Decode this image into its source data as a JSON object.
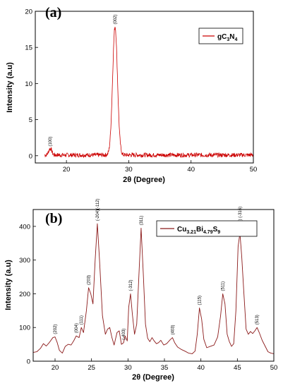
{
  "chart_data": [
    {
      "type": "line",
      "panel_label": "(a)",
      "xlabel": "2θ (Degree)",
      "ylabel": "Intensity (a.u)",
      "xlim": [
        15,
        50
      ],
      "ylim": [
        -1,
        20
      ],
      "xticks": [
        20,
        30,
        40,
        50
      ],
      "yticks": [
        0,
        5,
        10,
        15,
        20
      ],
      "grid": false,
      "legend_position": "top-right",
      "color": "#cc0000",
      "series": [
        {
          "name": "gC3N4",
          "name_parts": [
            "gC",
            "3",
            "N",
            "4"
          ],
          "peaks": [
            {
              "x": 17.4,
              "y": 0.9,
              "w": 0.35,
              "label": "(100)"
            },
            {
              "x": 27.8,
              "y": 17.8,
              "w": 0.55,
              "label": "(002)"
            }
          ],
          "baseline": 0.1,
          "noise": 0.3
        }
      ]
    },
    {
      "type": "line",
      "panel_label": "(b)",
      "xlabel": "2θ (Degree)",
      "ylabel": "Intensity (a.u)",
      "xlim": [
        17,
        50
      ],
      "ylim": [
        0,
        450
      ],
      "xticks": [
        20,
        25,
        30,
        35,
        40,
        45,
        50
      ],
      "yticks": [
        0,
        100,
        200,
        300,
        400
      ],
      "grid": false,
      "legend_position": "top-right",
      "color": "#8b1a1a",
      "series": [
        {
          "name": "Cu3.21Bi4.79S9",
          "name_parts": [
            "Cu",
            "3.21",
            "Bi",
            "4.79",
            "S",
            "9"
          ],
          "points": [
            [
              17.0,
              26
            ],
            [
              17.5,
              28
            ],
            [
              18.0,
              38
            ],
            [
              18.4,
              52
            ],
            [
              18.8,
              45
            ],
            [
              19.2,
              55
            ],
            [
              19.7,
              70
            ],
            [
              20.0,
              72
            ],
            [
              20.3,
              55
            ],
            [
              20.6,
              32
            ],
            [
              21.0,
              24
            ],
            [
              21.4,
              44
            ],
            [
              21.8,
              50
            ],
            [
              22.2,
              48
            ],
            [
              22.6,
              62
            ],
            [
              22.9,
              75
            ],
            [
              23.3,
              70
            ],
            [
              23.6,
              100
            ],
            [
              23.9,
              85
            ],
            [
              24.3,
              150
            ],
            [
              24.6,
              218
            ],
            [
              24.9,
              200
            ],
            [
              25.2,
              170
            ],
            [
              25.5,
              300
            ],
            [
              25.8,
              408
            ],
            [
              26.1,
              300
            ],
            [
              26.5,
              135
            ],
            [
              26.9,
              80
            ],
            [
              27.2,
              95
            ],
            [
              27.5,
              100
            ],
            [
              27.8,
              70
            ],
            [
              28.1,
              48
            ],
            [
              28.5,
              85
            ],
            [
              28.8,
              90
            ],
            [
              29.1,
              50
            ],
            [
              29.4,
              55
            ],
            [
              29.6,
              75
            ],
            [
              29.9,
              60
            ],
            [
              30.1,
              160
            ],
            [
              30.35,
              200
            ],
            [
              30.6,
              140
            ],
            [
              30.9,
              80
            ],
            [
              31.2,
              110
            ],
            [
              31.5,
              255
            ],
            [
              31.8,
              395
            ],
            [
              32.1,
              260
            ],
            [
              32.4,
              110
            ],
            [
              32.7,
              68
            ],
            [
              33.0,
              58
            ],
            [
              33.3,
              70
            ],
            [
              33.6,
              60
            ],
            [
              33.9,
              52
            ],
            [
              34.2,
              55
            ],
            [
              34.5,
              62
            ],
            [
              34.9,
              48
            ],
            [
              35.3,
              52
            ],
            [
              35.8,
              64
            ],
            [
              36.1,
              70
            ],
            [
              36.4,
              55
            ],
            [
              36.8,
              42
            ],
            [
              37.3,
              35
            ],
            [
              37.8,
              30
            ],
            [
              38.3,
              24
            ],
            [
              38.8,
              22
            ],
            [
              39.2,
              30
            ],
            [
              39.5,
              80
            ],
            [
              39.8,
              158
            ],
            [
              40.1,
              125
            ],
            [
              40.4,
              65
            ],
            [
              40.8,
              40
            ],
            [
              41.3,
              44
            ],
            [
              41.8,
              48
            ],
            [
              42.3,
              72
            ],
            [
              42.7,
              135
            ],
            [
              43.0,
              200
            ],
            [
              43.3,
              170
            ],
            [
              43.6,
              80
            ],
            [
              43.9,
              58
            ],
            [
              44.2,
              44
            ],
            [
              44.5,
              52
            ],
            [
              44.8,
              150
            ],
            [
              45.1,
              340
            ],
            [
              45.35,
              380
            ],
            [
              45.6,
              310
            ],
            [
              45.9,
              200
            ],
            [
              46.2,
              95
            ],
            [
              46.5,
              80
            ],
            [
              46.8,
              88
            ],
            [
              47.1,
              82
            ],
            [
              47.4,
              90
            ],
            [
              47.7,
              100
            ],
            [
              48.0,
              85
            ],
            [
              48.4,
              62
            ],
            [
              48.8,
              45
            ],
            [
              49.2,
              28
            ],
            [
              49.6,
              24
            ],
            [
              50.0,
              22
            ]
          ],
          "peak_labels": [
            {
              "x": 20.0,
              "y": 72,
              "label": "(202)"
            },
            {
              "x": 22.9,
              "y": 75,
              "label": "(004)"
            },
            {
              "x": 23.6,
              "y": 100,
              "label": "(111)"
            },
            {
              "x": 24.6,
              "y": 218,
              "label": "(203)"
            },
            {
              "x": 25.8,
              "y": 408,
              "label": "(-204)(-112)"
            },
            {
              "x": 29.4,
              "y": 55,
              "label": "(-403)"
            },
            {
              "x": 30.35,
              "y": 200,
              "label": "(-312)"
            },
            {
              "x": 31.8,
              "y": 395,
              "label": "(311)"
            },
            {
              "x": 36.1,
              "y": 70,
              "label": "(403)"
            },
            {
              "x": 39.8,
              "y": 158,
              "label": "(115)"
            },
            {
              "x": 43.0,
              "y": 200,
              "label": "(511)"
            },
            {
              "x": 45.35,
              "y": 380,
              "label": "(-314) (-316)"
            },
            {
              "x": 47.7,
              "y": 100,
              "label": "(513)"
            }
          ]
        }
      ]
    }
  ]
}
